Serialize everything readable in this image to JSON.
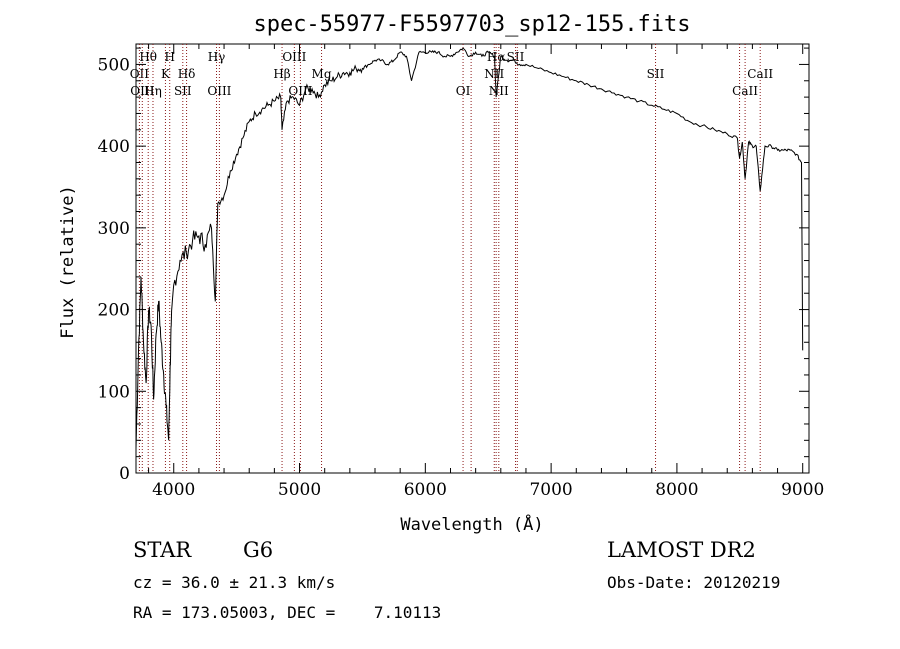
{
  "chart_data": {
    "type": "line",
    "title": "spec-55977-F5597703_sp12-155.fits",
    "xlabel": "Wavelength (Å)",
    "ylabel": "Flux (relative)",
    "xlim": [
      3700,
      9050
    ],
    "ylim": [
      0,
      525
    ],
    "xticks": [
      4000,
      5000,
      6000,
      7000,
      8000,
      9000
    ],
    "yticks": [
      0,
      100,
      200,
      300,
      400,
      500
    ],
    "grid": false,
    "legend": "none",
    "line_color": "#000000",
    "marker_color": "#8b1a1a",
    "series": [
      {
        "x": [
          3700,
          3720,
          3740,
          3760,
          3780,
          3800,
          3820,
          3840,
          3860,
          3880,
          3900,
          3920,
          3940,
          3960,
          3970,
          3980,
          4000,
          4050,
          4100,
          4150,
          4200,
          4250,
          4300,
          4330,
          4350,
          4400,
          4450,
          4500,
          4550,
          4600,
          4650,
          4700,
          4750,
          4800,
          4850,
          4861,
          4900,
          4950,
          5000,
          5050,
          5100,
          5150,
          5200,
          5250,
          5300,
          5350,
          5400,
          5450,
          5500,
          5550,
          5600,
          5650,
          5700,
          5750,
          5800,
          5850,
          5890,
          5950,
          6000,
          6050,
          6100,
          6150,
          6200,
          6250,
          6300,
          6350,
          6400,
          6450,
          6500,
          6550,
          6563,
          6600,
          6650,
          6700,
          6750,
          6800,
          6900,
          7000,
          7100,
          7200,
          7300,
          7400,
          7500,
          7600,
          7700,
          7800,
          7900,
          8000,
          8100,
          8200,
          8300,
          8400,
          8480,
          8498,
          8520,
          8542,
          8570,
          8600,
          8630,
          8662,
          8700,
          8750,
          8800,
          8850,
          8900,
          8950,
          8990,
          9000
        ],
        "y": [
          30,
          150,
          240,
          160,
          110,
          200,
          180,
          90,
          170,
          210,
          160,
          120,
          80,
          40,
          120,
          180,
          230,
          260,
          270,
          285,
          290,
          280,
          300,
          210,
          330,
          340,
          370,
          390,
          410,
          430,
          440,
          445,
          450,
          455,
          460,
          420,
          455,
          460,
          450,
          470,
          470,
          460,
          475,
          480,
          485,
          490,
          490,
          495,
          495,
          500,
          505,
          505,
          500,
          505,
          515,
          510,
          480,
          515,
          515,
          515,
          515,
          510,
          510,
          515,
          520,
          510,
          515,
          510,
          515,
          510,
          460,
          510,
          505,
          505,
          500,
          500,
          495,
          490,
          485,
          480,
          475,
          470,
          465,
          460,
          455,
          450,
          445,
          440,
          430,
          425,
          420,
          415,
          410,
          385,
          405,
          360,
          405,
          400,
          400,
          345,
          400,
          400,
          395,
          395,
          395,
          390,
          380,
          150
        ]
      }
    ],
    "lines": [
      {
        "x": 3727,
        "label": "OII",
        "row": 1
      },
      {
        "x": 3750,
        "label": "OIII",
        "row": 2
      },
      {
        "x": 3797,
        "label": "Hθ",
        "row": 0
      },
      {
        "x": 3835,
        "label": "Hη",
        "row": 2
      },
      {
        "x": 3934,
        "label": "K",
        "row": 1
      },
      {
        "x": 3968,
        "label": "H",
        "row": 0
      },
      {
        "x": 4072,
        "label": "SII",
        "row": 2
      },
      {
        "x": 4102,
        "label": "Hδ",
        "row": 1
      },
      {
        "x": 4340,
        "label": "Hγ",
        "row": 0
      },
      {
        "x": 4363,
        "label": "OIII",
        "row": 2
      },
      {
        "x": 4861,
        "label": "Hβ",
        "row": 1
      },
      {
        "x": 4959,
        "label": "OIII",
        "row": 0
      },
      {
        "x": 5007,
        "label": "OIII",
        "row": 2
      },
      {
        "x": 5175,
        "label": "Mg",
        "row": 1
      },
      {
        "x": 6300,
        "label": "OI",
        "row": 2
      },
      {
        "x": 6364,
        "label": "",
        "row": 2
      },
      {
        "x": 6548,
        "label": "NII",
        "row": 1
      },
      {
        "x": 6563,
        "label": "Hα",
        "row": 0
      },
      {
        "x": 6584,
        "label": "NII",
        "row": 2
      },
      {
        "x": 6717,
        "label": "SII",
        "row": 0
      },
      {
        "x": 6731,
        "label": "",
        "row": 0
      },
      {
        "x": 7830,
        "label": "SII",
        "row": 1
      },
      {
        "x": 8498,
        "label": "",
        "row": 2
      },
      {
        "x": 8542,
        "label": "CaII",
        "row": 2
      },
      {
        "x": 8662,
        "label": "CaII",
        "row": 1
      }
    ]
  },
  "info": {
    "class_type": "STAR",
    "subclass": "G6",
    "velocity": "cz = 36.0 ± 21.3 km/s",
    "coords": "RA = 173.05003, DEC =    7.10113",
    "survey": "LAMOST DR2",
    "obs_date": "Obs-Date: 20120219"
  }
}
